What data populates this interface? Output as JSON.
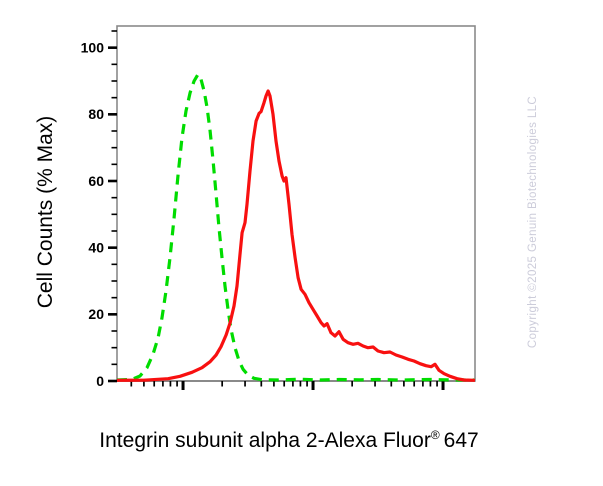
{
  "figure": {
    "ylabel": "Cell Counts (% Max)",
    "xlabel": {
      "main": "Integrin subunit alpha 2-Alexa Fluor",
      "sup": "®",
      "num": "647"
    },
    "watermark": "Copyright ©2025 Genuin Biotechnologies LLC"
  },
  "colors": {
    "background": "#ffffff",
    "axis_frame": "#8a8a8a",
    "tick": "#000000",
    "green_series": "#00DC00",
    "red_series": "#F81010",
    "watermark": "#ccccda"
  },
  "chart_data": {
    "type": "line",
    "subtype": "flow-cytometry-histogram-overlay",
    "title": "",
    "xlabel": "Integrin subunit alpha 2-Alexa Fluor® 647",
    "ylabel": "Cell Counts (% Max)",
    "grid": false,
    "legend_position": "none",
    "x_scale": "log10",
    "x_units": "decades relative to first major tick (x-axis has unlabeled log ticks)",
    "x_range_decades": [
      -0.508,
      2.246
    ],
    "x_major_ticks_decades": [
      0,
      1,
      2
    ],
    "x_minor_tick_rule": "log10 minors at k=2..9 within each decade",
    "ylim": [
      0,
      106.5
    ],
    "y_major_ticks": [
      0,
      20,
      40,
      60,
      80,
      100
    ],
    "y_minor_step": 5,
    "series": [
      {
        "name": "green-dashed-histogram",
        "style": "dashed",
        "color": "#00DC00",
        "peak": {
          "x_decades": 0.115,
          "y": 92
        },
        "points": [
          [
            -0.508,
            0.3
          ],
          [
            -0.392,
            0.5
          ],
          [
            -0.331,
            1.5
          ],
          [
            -0.277,
            4
          ],
          [
            -0.231,
            8
          ],
          [
            -0.192,
            13
          ],
          [
            -0.162,
            19
          ],
          [
            -0.131,
            27
          ],
          [
            -0.1,
            37
          ],
          [
            -0.069,
            49
          ],
          [
            -0.038,
            62
          ],
          [
            -0.008,
            73
          ],
          [
            0.023,
            81
          ],
          [
            0.054,
            86.5
          ],
          [
            0.085,
            90
          ],
          [
            0.115,
            92
          ],
          [
            0.138,
            90.5
          ],
          [
            0.162,
            87
          ],
          [
            0.185,
            82
          ],
          [
            0.208,
            75
          ],
          [
            0.231,
            66
          ],
          [
            0.254,
            56
          ],
          [
            0.277,
            46
          ],
          [
            0.3,
            37
          ],
          [
            0.323,
            28.5
          ],
          [
            0.346,
            21.5
          ],
          [
            0.369,
            15.5
          ],
          [
            0.4,
            10
          ],
          [
            0.431,
            6
          ],
          [
            0.462,
            3.5
          ],
          [
            0.5,
            1.8
          ],
          [
            0.546,
            0.8
          ],
          [
            0.608,
            0.4
          ],
          [
            0.746,
            0.3
          ],
          [
            0.9,
            0.55
          ],
          [
            1.054,
            0.3
          ],
          [
            1.2,
            0.45
          ],
          [
            1.362,
            0.35
          ],
          [
            1.5,
            0.45
          ],
          [
            1.669,
            0.3
          ],
          [
            1.9,
            0.45
          ],
          [
            2.092,
            0.3
          ],
          [
            2.24,
            0.3
          ]
        ]
      },
      {
        "name": "red-solid-histogram",
        "style": "solid",
        "color": "#F81010",
        "peak": {
          "x_decades": 0.654,
          "y": 87
        },
        "points": [
          [
            -0.508,
            0.2
          ],
          [
            -0.3,
            0.25
          ],
          [
            -0.115,
            0.7
          ],
          [
            -0.023,
            1.4
          ],
          [
            0.069,
            2.6
          ],
          [
            0.146,
            4
          ],
          [
            0.208,
            5.8
          ],
          [
            0.254,
            7.8
          ],
          [
            0.292,
            10.3
          ],
          [
            0.331,
            13.8
          ],
          [
            0.362,
            17.5
          ],
          [
            0.392,
            22.5
          ],
          [
            0.415,
            28.5
          ],
          [
            0.438,
            38
          ],
          [
            0.454,
            44.5
          ],
          [
            0.477,
            47.5
          ],
          [
            0.492,
            53
          ],
          [
            0.515,
            63
          ],
          [
            0.538,
            72
          ],
          [
            0.562,
            78
          ],
          [
            0.585,
            80.3
          ],
          [
            0.6,
            80.8
          ],
          [
            0.623,
            83.5
          ],
          [
            0.638,
            85.5
          ],
          [
            0.654,
            87
          ],
          [
            0.669,
            85.5
          ],
          [
            0.692,
            80
          ],
          [
            0.715,
            72
          ],
          [
            0.738,
            66
          ],
          [
            0.762,
            61.5
          ],
          [
            0.777,
            60
          ],
          [
            0.792,
            61
          ],
          [
            0.815,
            53
          ],
          [
            0.838,
            44
          ],
          [
            0.862,
            37
          ],
          [
            0.885,
            31
          ],
          [
            0.908,
            27.5
          ],
          [
            0.938,
            26
          ],
          [
            0.969,
            23.5
          ],
          [
            1.0,
            21.5
          ],
          [
            1.031,
            19.5
          ],
          [
            1.062,
            17.5
          ],
          [
            1.085,
            16.5
          ],
          [
            1.108,
            17.2
          ],
          [
            1.138,
            14.5
          ],
          [
            1.169,
            13.5
          ],
          [
            1.2,
            14.8
          ],
          [
            1.231,
            12.5
          ],
          [
            1.269,
            11.5
          ],
          [
            1.308,
            11
          ],
          [
            1.346,
            11.3
          ],
          [
            1.385,
            10.5
          ],
          [
            1.423,
            10
          ],
          [
            1.462,
            10.2
          ],
          [
            1.5,
            9
          ],
          [
            1.546,
            8.5
          ],
          [
            1.592,
            8.7
          ],
          [
            1.638,
            7.8
          ],
          [
            1.685,
            7.2
          ],
          [
            1.731,
            6.5
          ],
          [
            1.777,
            6
          ],
          [
            1.823,
            5.2
          ],
          [
            1.869,
            4.6
          ],
          [
            1.908,
            4.3
          ],
          [
            1.938,
            5
          ],
          [
            1.969,
            3.2
          ],
          [
            2.008,
            2.2
          ],
          [
            2.054,
            1.4
          ],
          [
            2.108,
            0.7
          ],
          [
            2.162,
            0.3
          ],
          [
            2.246,
            0.2
          ]
        ]
      }
    ]
  }
}
